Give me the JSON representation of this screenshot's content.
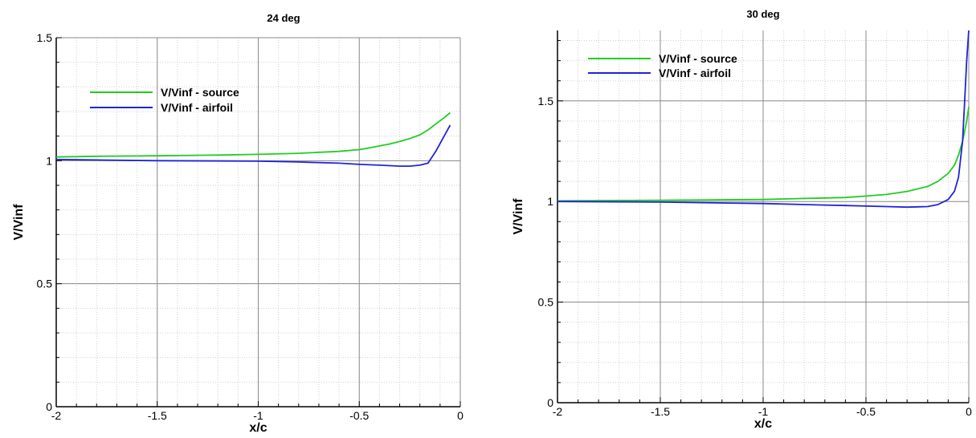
{
  "chart_data": [
    {
      "type": "line",
      "title": "24 deg",
      "xlabel": "x/c",
      "ylabel": "V/Vinf",
      "xlim": [
        -2,
        0
      ],
      "ylim": [
        0,
        1.5
      ],
      "xticks": [
        -2,
        -1.5,
        -1,
        -0.5,
        0
      ],
      "xtick_labels": [
        "-2",
        "-1.5",
        "-1",
        "-0.5",
        "0"
      ],
      "yticks": [
        0,
        0.5,
        1,
        1.5
      ],
      "ytick_labels": [
        "0",
        "0.5",
        "1",
        "1.5"
      ],
      "grid": true,
      "legend_position": "upper-left",
      "series": [
        {
          "name": "V/Vinf - source",
          "color": "#22cc22",
          "x": [
            -2.0,
            -1.8,
            -1.5,
            -1.2,
            -1.0,
            -0.8,
            -0.6,
            -0.5,
            -0.45,
            -0.4,
            -0.35,
            -0.3,
            -0.25,
            -0.2,
            -0.16,
            -0.12,
            -0.08,
            -0.05
          ],
          "y": [
            1.015,
            1.018,
            1.02,
            1.023,
            1.026,
            1.03,
            1.038,
            1.045,
            1.052,
            1.06,
            1.068,
            1.078,
            1.09,
            1.105,
            1.125,
            1.15,
            1.175,
            1.195
          ]
        },
        {
          "name": "V/Vinf - airfoil",
          "color": "#2222dd",
          "x": [
            -2.0,
            -1.8,
            -1.5,
            -1.0,
            -0.8,
            -0.6,
            -0.5,
            -0.4,
            -0.3,
            -0.25,
            -0.2,
            -0.16,
            -0.12,
            -0.08,
            -0.05
          ],
          "y": [
            1.005,
            1.003,
            1.0,
            0.998,
            0.995,
            0.99,
            0.985,
            0.982,
            0.978,
            0.978,
            0.982,
            0.99,
            1.04,
            1.1,
            1.145
          ]
        }
      ]
    },
    {
      "type": "line",
      "title": "30 deg",
      "xlabel": "x/c",
      "ylabel": "V/Vinf",
      "xlim": [
        -2,
        0
      ],
      "ylim": [
        0,
        1.85
      ],
      "xticks": [
        -2,
        -1.5,
        -1,
        -0.5,
        0
      ],
      "xtick_labels": [
        "-2",
        "-1.5",
        "-1",
        "-0.5",
        "0"
      ],
      "yticks": [
        0,
        0.5,
        1,
        1.5
      ],
      "ytick_labels": [
        "0",
        "0.5",
        "1",
        "1.5"
      ],
      "grid": true,
      "legend_position": "upper-left",
      "series": [
        {
          "name": "V/Vinf - source",
          "color": "#22cc22",
          "x": [
            -2.0,
            -1.5,
            -1.0,
            -0.8,
            -0.6,
            -0.5,
            -0.4,
            -0.3,
            -0.2,
            -0.15,
            -0.1,
            -0.07,
            -0.05,
            -0.03,
            -0.01,
            0.0
          ],
          "y": [
            1.003,
            1.006,
            1.01,
            1.015,
            1.02,
            1.027,
            1.035,
            1.05,
            1.075,
            1.1,
            1.14,
            1.18,
            1.23,
            1.3,
            1.4,
            1.47
          ]
        },
        {
          "name": "V/Vinf - airfoil",
          "color": "#2222dd",
          "x": [
            -2.0,
            -1.5,
            -1.0,
            -0.8,
            -0.6,
            -0.4,
            -0.3,
            -0.2,
            -0.15,
            -0.1,
            -0.07,
            -0.05,
            -0.03,
            -0.02,
            -0.01,
            0.0
          ],
          "y": [
            1.0,
            0.997,
            0.99,
            0.985,
            0.98,
            0.975,
            0.972,
            0.975,
            0.985,
            1.01,
            1.05,
            1.12,
            1.3,
            1.5,
            1.7,
            1.85
          ]
        }
      ]
    }
  ]
}
